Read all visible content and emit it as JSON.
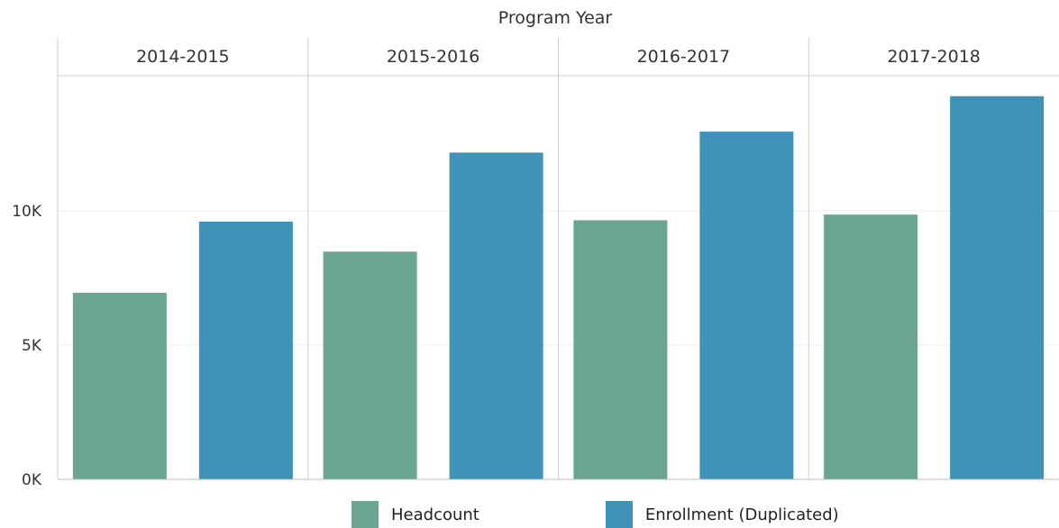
{
  "chart_data": {
    "type": "bar",
    "title": "Program Year",
    "categories": [
      "2014-2015",
      "2015-2016",
      "2016-2017",
      "2017-2018"
    ],
    "series": [
      {
        "name": "Headcount",
        "color": "#6aa592",
        "values": [
          6950,
          8480,
          9650,
          9860
        ]
      },
      {
        "name": "Enrollment (Duplicated)",
        "color": "#3f92b8",
        "values": [
          9600,
          12170,
          12950,
          14270
        ]
      }
    ],
    "ytick_labels": [
      "0K",
      "5K",
      "10K"
    ],
    "ytick_values": [
      0,
      5000,
      10000
    ],
    "ylim": [
      0,
      15000
    ],
    "grid": true,
    "legend_placement": "bottom"
  }
}
